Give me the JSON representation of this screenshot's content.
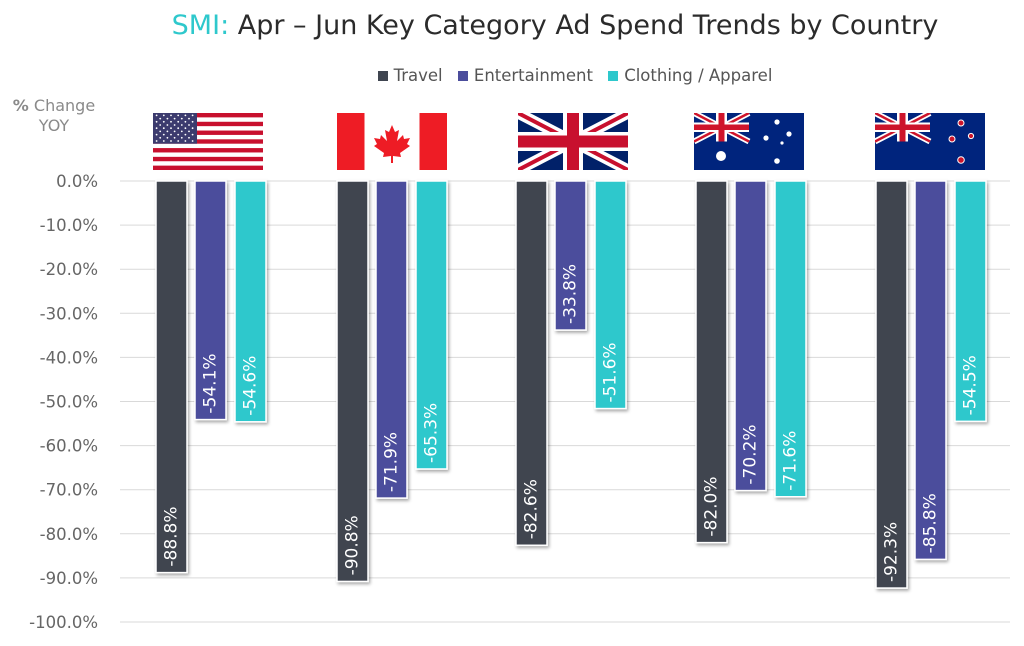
{
  "title": {
    "prefix": "SMI:",
    "main": "Apr – Jun Key Category Ad Spend Trends by Country"
  },
  "ylabel": {
    "symbol": "%",
    "line1": "Change",
    "line2": "YOY"
  },
  "flags": [
    {
      "country": "United States",
      "icon": "us-flag-icon"
    },
    {
      "country": "Canada",
      "icon": "canada-flag-icon"
    },
    {
      "country": "United Kingdom",
      "icon": "uk-flag-icon"
    },
    {
      "country": "Australia",
      "icon": "australia-flag-icon"
    },
    {
      "country": "New Zealand",
      "icon": "new-zealand-flag-icon"
    }
  ],
  "chart_data": {
    "type": "bar",
    "title": "SMI: Apr – Jun Key Category Ad Spend Trends by Country",
    "ylabel": "% Change YOY",
    "xlabel": "",
    "ylim": [
      -100,
      0
    ],
    "grid": true,
    "legend_position": "top",
    "y_ticks": [
      "0.0%",
      "-10.0%",
      "-20.0%",
      "-30.0%",
      "-40.0%",
      "-50.0%",
      "-60.0%",
      "-70.0%",
      "-80.0%",
      "-90.0%",
      "-100.0%"
    ],
    "y_tick_values": [
      0,
      -10,
      -20,
      -30,
      -40,
      -50,
      -60,
      -70,
      -80,
      -90,
      -100
    ],
    "categories": [
      "United States",
      "Canada",
      "United Kingdom",
      "Australia",
      "New Zealand"
    ],
    "series": [
      {
        "name": "Travel",
        "color": "#3f4550",
        "values": [
          -88.8,
          -90.8,
          -82.6,
          -82.0,
          -92.3
        ],
        "labels": [
          "-88.8%",
          "-90.8%",
          "-82.6%",
          "-82.0%",
          "-92.3%"
        ]
      },
      {
        "name": "Entertainment",
        "color": "#4b4d9c",
        "values": [
          -54.1,
          -71.9,
          -33.8,
          -70.2,
          -85.8
        ],
        "labels": [
          "-54.1%",
          "-71.9%",
          "-33.8%",
          "-70.2%",
          "-85.8%"
        ]
      },
      {
        "name": "Clothing / Apparel",
        "color": "#2ec8cc",
        "values": [
          -54.6,
          -65.3,
          -51.6,
          -71.6,
          -54.5
        ],
        "labels": [
          "-54.6%",
          "-65.3%",
          "-51.6%",
          "-71.6%",
          "-54.5%"
        ]
      }
    ]
  }
}
